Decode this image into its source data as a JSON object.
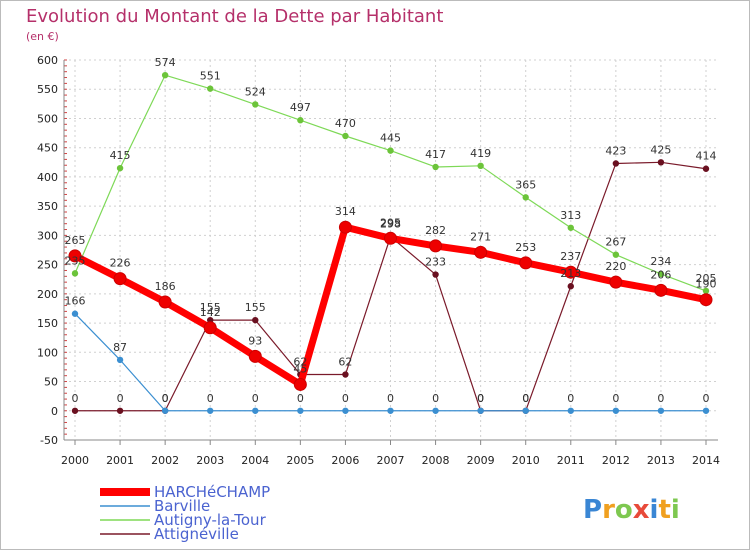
{
  "chart_data": {
    "type": "line",
    "title": "Evolution du Montant de la Dette par Habitant",
    "subtitle": "(en €)",
    "x": [
      "2000",
      "2001",
      "2002",
      "2003",
      "2004",
      "2005",
      "2006",
      "2007",
      "2008",
      "2009",
      "2010",
      "2011",
      "2012",
      "2013",
      "2014"
    ],
    "ylim": [
      -50,
      600
    ],
    "yticks": [
      -50,
      0,
      50,
      100,
      150,
      200,
      250,
      300,
      350,
      400,
      450,
      500,
      550,
      600
    ],
    "grid": true,
    "legend_position": "bottom-left",
    "series": [
      {
        "name": "HARCHéCHAMP",
        "color": "#ff0000",
        "values": [
          265,
          226,
          186,
          142,
          93,
          45,
          314,
          295,
          282,
          271,
          253,
          237,
          220,
          206,
          190
        ],
        "labels": [
          "265",
          "226",
          "186",
          "142",
          "93",
          "45",
          "314",
          "295",
          "282",
          "271",
          "253",
          "237",
          "220",
          "206",
          "190"
        ]
      },
      {
        "name": "Barville",
        "color": "#3b8fd1",
        "values": [
          166,
          87,
          0,
          0,
          0,
          0,
          0,
          0,
          0,
          0,
          0,
          0,
          0,
          0,
          0
        ],
        "labels": [
          "166",
          "87",
          "0",
          "0",
          "0",
          "0",
          "0",
          "0",
          "0",
          "0",
          "0",
          "0",
          "0",
          "0",
          "0"
        ]
      },
      {
        "name": "Autigny-la-Tour",
        "color": "#7ed957",
        "values": [
          235,
          415,
          574,
          551,
          524,
          497,
          470,
          445,
          417,
          419,
          365,
          313,
          267,
          234,
          205
        ],
        "labels": [
          "235",
          "415",
          "574",
          "551",
          "524",
          "497",
          "470",
          "445",
          "417",
          "419",
          "365",
          "313",
          "267",
          "234",
          "205"
        ]
      },
      {
        "name": "Attignéville",
        "color": "#7a1a2a",
        "values": [
          0,
          0,
          0,
          155,
          155,
          62,
          62,
          298,
          233,
          0,
          0,
          213,
          423,
          425,
          414
        ],
        "labels": [
          "0",
          "0",
          "0",
          "155",
          "155",
          "62",
          "62",
          "298",
          "233",
          "0",
          "0",
          "213",
          "423",
          "425",
          "414"
        ]
      }
    ]
  },
  "logo": {
    "text": "Proxiti"
  }
}
